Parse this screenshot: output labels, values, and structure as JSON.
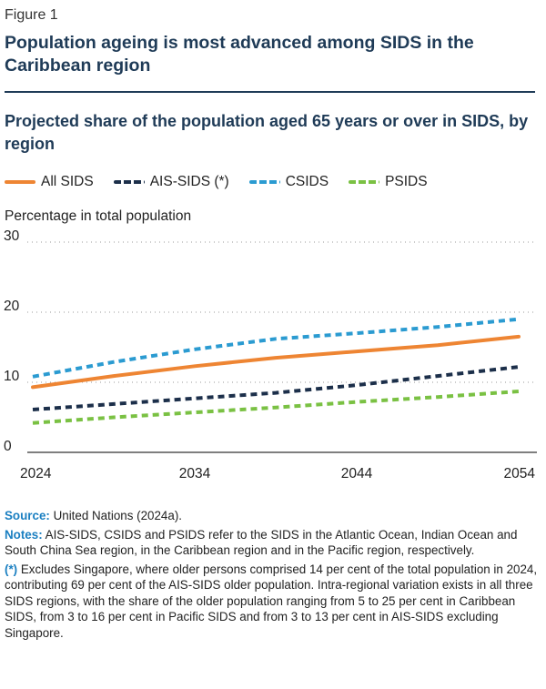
{
  "figure_label": "Figure 1",
  "title": "Population ageing is most advanced among SIDS in the Caribbean region",
  "subtitle": "Projected share of the population aged 65 years or over in SIDS, by region",
  "y_unit_label": "Percentage in total population",
  "colors": {
    "accent": "#1f3b57",
    "highlight": "#1a7fc1"
  },
  "chart_data": {
    "type": "line",
    "title": "Projected share of the population aged 65 years or over in SIDS, by region",
    "xlabel": "",
    "ylabel": "Percentage in total population",
    "x": [
      2024,
      2029,
      2034,
      2039,
      2044,
      2049,
      2054
    ],
    "xticks": [
      "2024",
      "2034",
      "2044",
      "2054"
    ],
    "yticks": [
      "0",
      "10",
      "20",
      "30"
    ],
    "ylim": [
      0,
      30
    ],
    "xlim": [
      2024,
      2054
    ],
    "grid": "horizontal dotted",
    "legend_position": "top",
    "series": [
      {
        "name": "All SIDS",
        "color": "#ee8533",
        "dash": "solid",
        "values": [
          9.3,
          10.9,
          12.3,
          13.5,
          14.4,
          15.3,
          16.5
        ]
      },
      {
        "name": "AIS-SIDS (*)",
        "color": "#1c2f4a",
        "dash": "dashed",
        "values": [
          6.1,
          6.9,
          7.7,
          8.5,
          9.6,
          10.9,
          12.2
        ]
      },
      {
        "name": "CSIDS",
        "color": "#2b9bd1",
        "dash": "dashed",
        "values": [
          10.8,
          12.9,
          14.7,
          16.2,
          17.0,
          17.9,
          19.0
        ]
      },
      {
        "name": "PSIDS",
        "color": "#7ac143",
        "dash": "dashed",
        "values": [
          4.2,
          5.0,
          5.7,
          6.4,
          7.2,
          7.9,
          8.7
        ]
      }
    ]
  },
  "notes": {
    "source_label": "Source:",
    "source_text": " United Nations (2024a).",
    "notes_label": "Notes:",
    "notes_text": " AIS-SIDS, CSIDS and PSIDS refer to the SIDS in the Atlantic Ocean, Indian Ocean and South China Sea region, in the Caribbean region and in the Pacific region, respectively.",
    "asterisk_label": "(*)",
    "asterisk_text": " Excludes Singapore, where older persons comprised 14 per cent of the total population in 2024, contributing 69 per cent of the AIS-SIDS older population. Intra-regional variation exists in all three SIDS regions, with the share of the older population ranging from 5 to 25 per cent in Caribbean SIDS, from 3 to 16 per cent in Pacific SIDS and from 3 to 13 per cent in AIS-SIDS excluding Singapore."
  }
}
